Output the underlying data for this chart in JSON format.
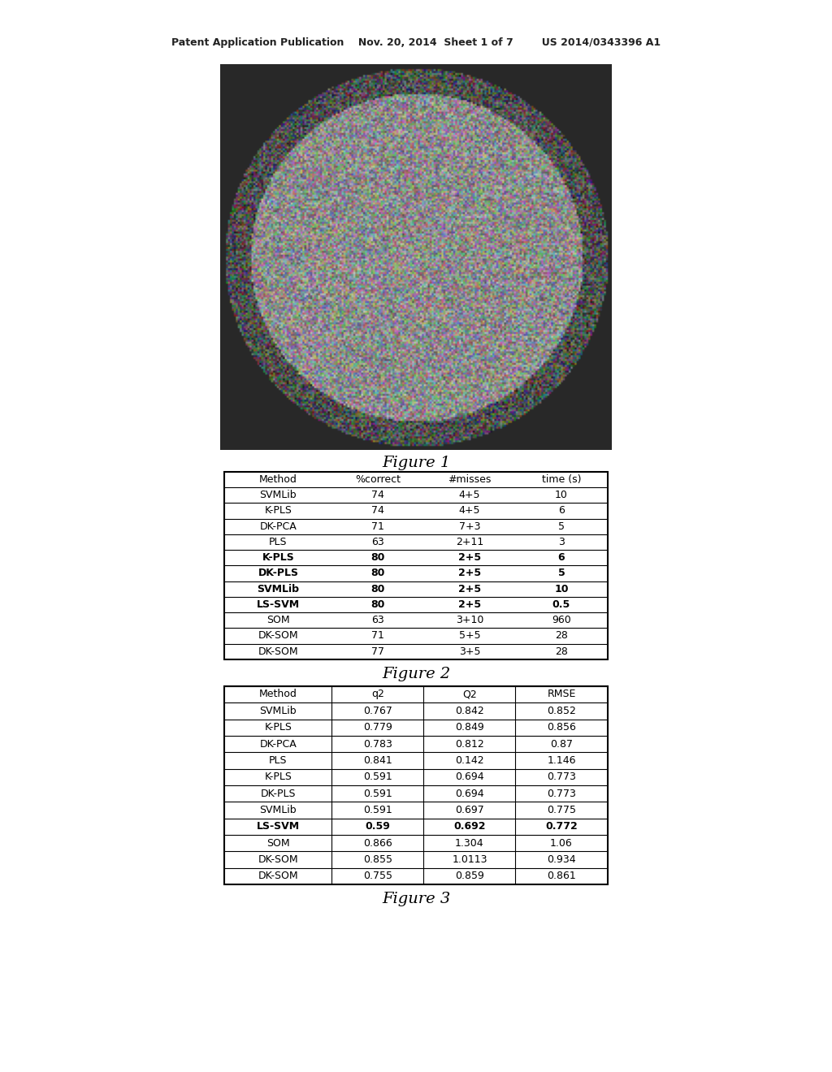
{
  "header_text": "Patent Application Publication    Nov. 20, 2014  Sheet 1 of 7        US 2014/0343396 A1",
  "figure1_caption": "Figure 1",
  "figure2_caption": "Figure 2",
  "figure3_caption": "Figure 3",
  "table2": {
    "headers": [
      "Method",
      "%correct",
      "#misses",
      "time (s)"
    ],
    "rows": [
      {
        "cells": [
          "SVMLib",
          "74",
          "4+5",
          "10"
        ],
        "bold": false
      },
      {
        "cells": [
          "K-PLS",
          "74",
          "4+5",
          "6"
        ],
        "bold": false
      },
      {
        "cells": [
          "DK-PCA",
          "71",
          "7+3",
          "5"
        ],
        "bold": false
      },
      {
        "cells": [
          "PLS",
          "63",
          "2+11",
          "3"
        ],
        "bold": false
      },
      {
        "cells": [
          "K-PLS",
          "80",
          "2+5",
          "6"
        ],
        "bold": true
      },
      {
        "cells": [
          "DK-PLS",
          "80",
          "2+5",
          "5"
        ],
        "bold": true
      },
      {
        "cells": [
          "SVMLib",
          "80",
          "2+5",
          "10"
        ],
        "bold": true
      },
      {
        "cells": [
          "LS-SVM",
          "80",
          "2+5",
          "0.5"
        ],
        "bold": true
      },
      {
        "cells": [
          "SOM",
          "63",
          "3+10",
          "960"
        ],
        "bold": false
      },
      {
        "cells": [
          "DK-SOM",
          "71",
          "5+5",
          "28"
        ],
        "bold": false
      },
      {
        "cells": [
          "DK-SOM",
          "77",
          "3+5",
          "28"
        ],
        "bold": false
      }
    ]
  },
  "table3": {
    "headers": [
      "Method",
      "q2",
      "Q2",
      "RMSE"
    ],
    "rows": [
      {
        "cells": [
          "SVMLib",
          "0.767",
          "0.842",
          "0.852"
        ],
        "bold": false
      },
      {
        "cells": [
          "K-PLS",
          "0.779",
          "0.849",
          "0.856"
        ],
        "bold": false
      },
      {
        "cells": [
          "DK-PCA",
          "0.783",
          "0.812",
          "0.87"
        ],
        "bold": false
      },
      {
        "cells": [
          "PLS",
          "0.841",
          "0.142",
          "1.146"
        ],
        "bold": false
      },
      {
        "cells": [
          "K-PLS",
          "0.591",
          "0.694",
          "0.773"
        ],
        "bold": false
      },
      {
        "cells": [
          "DK-PLS",
          "0.591",
          "0.694",
          "0.773"
        ],
        "bold": false
      },
      {
        "cells": [
          "SVMLib",
          "0.591",
          "0.697",
          "0.775"
        ],
        "bold": false
      },
      {
        "cells": [
          "LS-SVM",
          "0.59",
          "0.692",
          "0.772"
        ],
        "bold": true
      },
      {
        "cells": [
          "SOM",
          "0.866",
          "1.304",
          "1.06"
        ],
        "bold": false
      },
      {
        "cells": [
          "DK-SOM",
          "0.855",
          "1.0113",
          "0.934"
        ],
        "bold": false
      },
      {
        "cells": [
          "DK-SOM",
          "0.755",
          "0.859",
          "0.861"
        ],
        "bold": false
      }
    ]
  },
  "bg_color": "#ffffff",
  "table_border_color": "#000000",
  "text_color": "#000000",
  "header_color": "#555555"
}
